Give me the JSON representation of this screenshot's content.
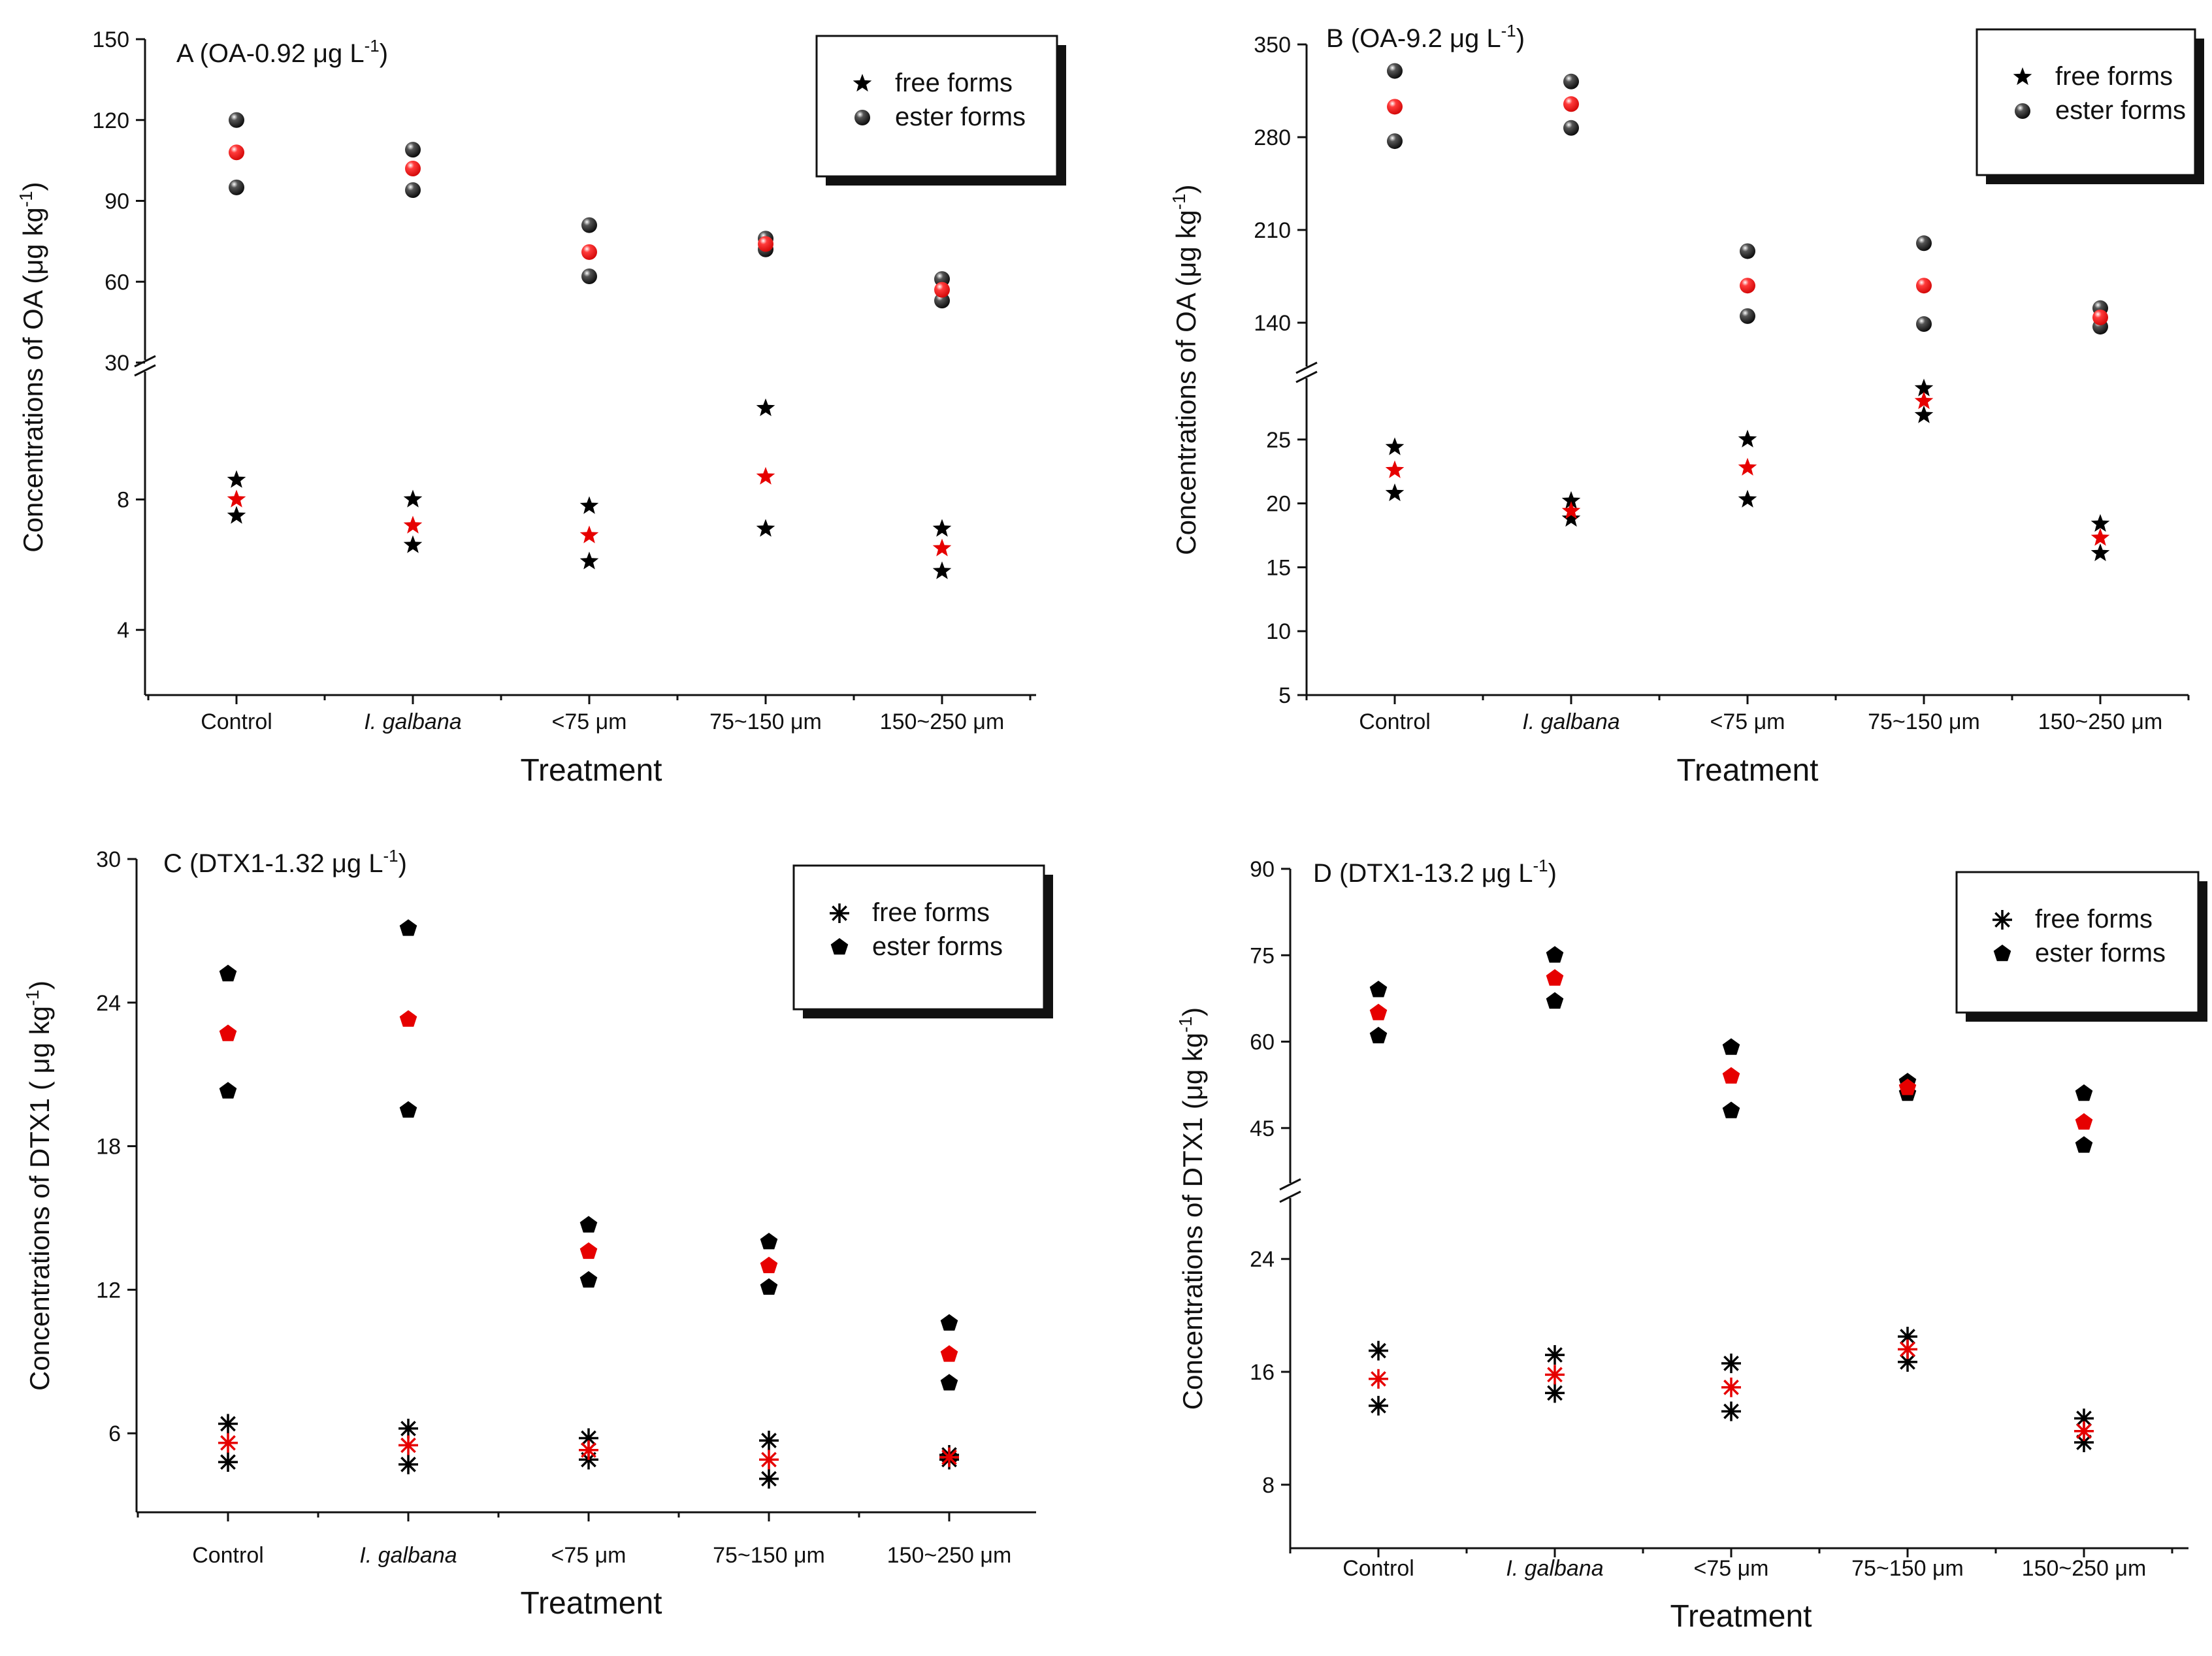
{
  "colors": {
    "upper_marker": "#000000",
    "mean_marker": "#e60000",
    "lower_marker": "#000000",
    "axis": "#111111"
  },
  "icons": {
    "free_OA": "star-icon",
    "ester_OA": "sphere-icon",
    "free_DTX1": "asterisk-icon",
    "ester_DTX1": "pentagon-icon"
  },
  "chart_data": [
    {
      "type": "scatter",
      "panel": "A",
      "title": "A (OA-0.92 μg L",
      "title_sup": "-1",
      "title_end": ")",
      "xlabel": "Treatment",
      "ylabel": "Concentrations of OA (μg kg",
      "ylabel_sup": "-1",
      "ylabel_end": ")",
      "categories": [
        "Control",
        "I. galbana",
        "<75 μm",
        "75~150 μm",
        "150~250 μm"
      ],
      "italic_categories": [
        "I. galbana"
      ],
      "broken_axis": true,
      "upper_ylim": [
        30,
        150
      ],
      "upper_ticks": [
        "150",
        "120",
        "90",
        "60",
        "30"
      ],
      "lower_ylim": [
        2,
        12
      ],
      "lower_ticks": [
        "8",
        "4"
      ],
      "legend": {
        "position": "top-right",
        "entries": [
          "free forms",
          "ester forms"
        ]
      },
      "series": [
        {
          "name": "free forms",
          "marker": "star",
          "upper": [
            8.6,
            8.0,
            7.8,
            10.8,
            7.1
          ],
          "mean": [
            8.0,
            7.2,
            6.9,
            8.7,
            6.5
          ],
          "lower": [
            7.5,
            6.6,
            6.1,
            7.1,
            5.8
          ]
        },
        {
          "name": "ester forms",
          "marker": "sphere",
          "upper": [
            120,
            109,
            81,
            76,
            61
          ],
          "mean": [
            108,
            102,
            71,
            74,
            57
          ],
          "lower": [
            95,
            94,
            62,
            72,
            53
          ]
        }
      ]
    },
    {
      "type": "scatter",
      "panel": "B",
      "title": "B (OA-9.2 μg L",
      "title_sup": "-1",
      "title_end": ")",
      "xlabel": "Treatment",
      "ylabel": "Concentrations of OA (μg kg",
      "ylabel_sup": "-1",
      "ylabel_end": ")",
      "categories": [
        "Control",
        "I. galbana",
        "<75 μm",
        "75~150 μm",
        "150~250 μm"
      ],
      "italic_categories": [
        "I. galbana"
      ],
      "broken_axis": true,
      "upper_ylim": [
        105,
        350
      ],
      "upper_ticks": [
        "350",
        "280",
        "210",
        "140"
      ],
      "lower_ylim": [
        5,
        30
      ],
      "lower_ticks": [
        "25",
        "20",
        "15",
        "10",
        "5"
      ],
      "legend": {
        "position": "top-right",
        "entries": [
          "free forms",
          "ester forms"
        ]
      },
      "series": [
        {
          "name": "free forms",
          "marker": "star",
          "upper": [
            24.4,
            20.2,
            25.0,
            29.0,
            18.4
          ],
          "mean": [
            22.6,
            19.4,
            22.8,
            28.0,
            17.3
          ],
          "lower": [
            20.8,
            18.8,
            20.3,
            26.9,
            16.1
          ]
        },
        {
          "name": "ester forms",
          "marker": "sphere",
          "upper": [
            330,
            322,
            194,
            200,
            151
          ],
          "mean": [
            303,
            305,
            168,
            168,
            144
          ],
          "lower": [
            277,
            287,
            145,
            139,
            137
          ]
        }
      ]
    },
    {
      "type": "scatter",
      "panel": "C",
      "title": "C (DTX1-1.32  μg L",
      "title_sup": "-1",
      "title_end": ")",
      "xlabel": "Treatment",
      "ylabel": "Concentrations of DTX1 ( μg kg",
      "ylabel_sup": "-1",
      "ylabel_end": ")",
      "categories": [
        "Control",
        "I. galbana",
        "<75 μm",
        "75~150 μm",
        "150~250 μm"
      ],
      "italic_categories": [
        "I. galbana"
      ],
      "broken_axis": false,
      "ylim": [
        2.7,
        30
      ],
      "yticks": [
        "30",
        "24",
        "18",
        "12",
        "6"
      ],
      "legend": {
        "position": "top-right",
        "entries": [
          "free forms",
          "ester forms"
        ]
      },
      "series": [
        {
          "name": "free forms",
          "marker": "asterisk",
          "upper": [
            6.4,
            6.2,
            5.8,
            5.7,
            5.1
          ],
          "mean": [
            5.6,
            5.5,
            5.3,
            4.9,
            5.0
          ],
          "lower": [
            4.8,
            4.7,
            4.9,
            4.1,
            4.9
          ]
        },
        {
          "name": "ester forms",
          "marker": "pentagon",
          "upper": [
            25.2,
            27.1,
            14.7,
            14.0,
            10.6
          ],
          "mean": [
            22.7,
            23.3,
            13.6,
            13.0,
            9.3
          ],
          "lower": [
            20.3,
            19.5,
            12.4,
            12.1,
            8.1
          ]
        }
      ]
    },
    {
      "type": "scatter",
      "panel": "D",
      "title": "D (DTX1-13.2 μg L",
      "title_sup": "-1",
      "title_end": ")",
      "xlabel": "Treatment",
      "ylabel": "Concentrations of DTX1 (μg kg",
      "ylabel_sup": "-1",
      "ylabel_end": ")",
      "categories": [
        "Control",
        "I. galbana",
        "<75 μm",
        "75~150 μm",
        "150~250 μm"
      ],
      "italic_categories": [
        "I. galbana"
      ],
      "broken_axis": true,
      "upper_ylim": [
        35,
        90
      ],
      "upper_ticks": [
        "90",
        "75",
        "60",
        "45"
      ],
      "lower_ylim": [
        3.5,
        28.5
      ],
      "lower_ticks": [
        "24",
        "16",
        "8"
      ],
      "legend": {
        "position": "top-right",
        "entries": [
          "free forms",
          "ester forms"
        ]
      },
      "series": [
        {
          "name": "free forms",
          "marker": "asterisk",
          "upper": [
            17.5,
            17.2,
            16.6,
            18.5,
            12.7
          ],
          "mean": [
            15.5,
            15.8,
            14.9,
            17.6,
            11.8
          ],
          "lower": [
            13.6,
            14.5,
            13.2,
            16.7,
            11.0
          ]
        },
        {
          "name": "ester forms",
          "marker": "pentagon",
          "upper": [
            69,
            75,
            59,
            53,
            51
          ],
          "mean": [
            65,
            71,
            54,
            52,
            46
          ],
          "lower": [
            61,
            67,
            48,
            51,
            42
          ]
        }
      ]
    }
  ]
}
